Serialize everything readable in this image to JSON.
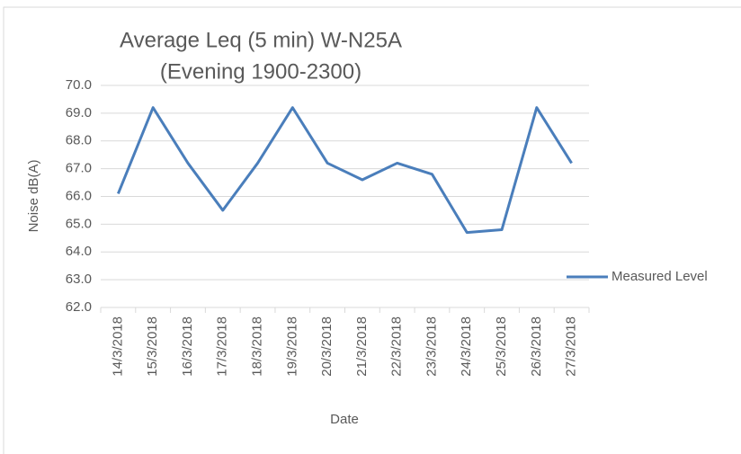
{
  "chart_data": {
    "type": "line",
    "title": [
      "Average Leq (5 min) W-N25A",
      "(Evening 1900-2300)"
    ],
    "x_label": "Date",
    "y_label": "Noise dB(A)",
    "categories": [
      "14/3/2018",
      "15/3/2018",
      "16/3/2018",
      "17/3/2018",
      "18/3/2018",
      "19/3/2018",
      "20/3/2018",
      "21/3/2018",
      "22/3/2018",
      "23/3/2018",
      "24/3/2018",
      "25/3/2018",
      "26/3/2018",
      "27/3/2018"
    ],
    "series": [
      {
        "name": "Measured Level",
        "color": "#4a7ebb",
        "values": [
          66.1,
          69.2,
          67.2,
          65.5,
          67.2,
          69.2,
          67.2,
          66.6,
          67.2,
          66.8,
          64.7,
          64.8,
          69.2,
          67.2
        ]
      }
    ],
    "ylim": [
      62,
      70
    ],
    "yticks": [
      {
        "value": 62,
        "label": "62.0"
      },
      {
        "value": 63,
        "label": "63.0"
      },
      {
        "value": 64,
        "label": "64.0"
      },
      {
        "value": 65,
        "label": "65.0"
      },
      {
        "value": 66,
        "label": "66.0"
      },
      {
        "value": 67,
        "label": "67.0"
      },
      {
        "value": 68,
        "label": "68.0"
      },
      {
        "value": 69,
        "label": "69.0"
      },
      {
        "value": 70,
        "label": "70.0"
      }
    ],
    "grid": true,
    "legend": "right"
  }
}
